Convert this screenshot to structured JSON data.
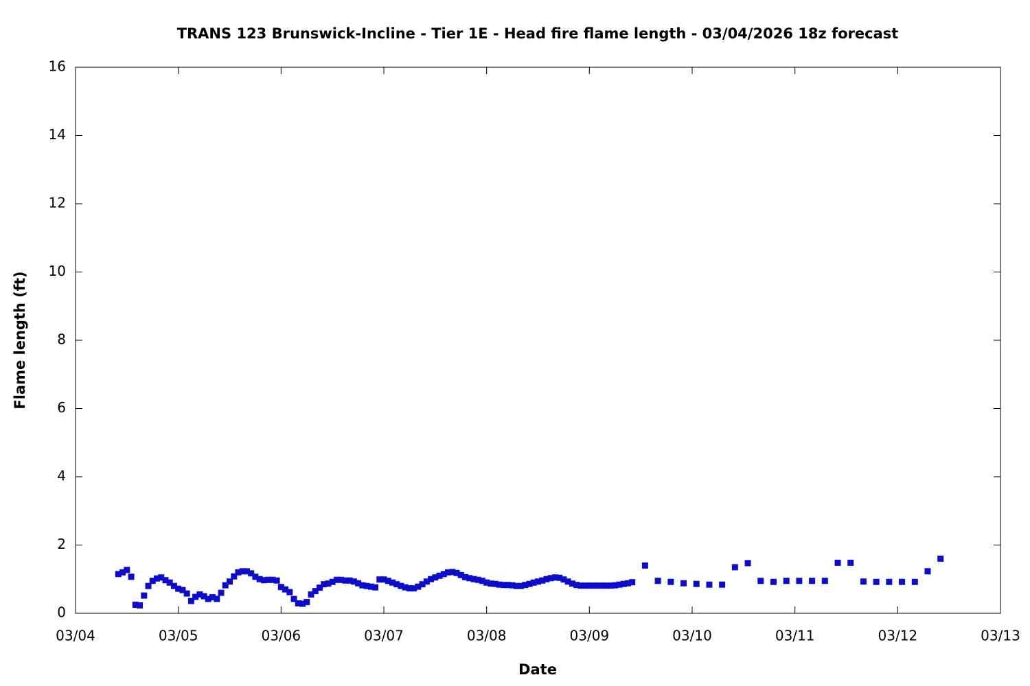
{
  "chart_data": {
    "type": "scatter",
    "title": "TRANS 123 Brunswick-Incline - Tier 1E - Head fire flame length - 03/04/2026 18z forecast",
    "x_label": "Date",
    "y_label": "Flame length (ft)",
    "x": [
      10,
      11,
      12,
      13,
      14,
      15,
      16,
      17,
      18,
      19,
      20,
      21,
      22,
      23,
      24,
      25,
      26,
      27,
      28,
      29,
      30,
      31,
      32,
      33,
      34,
      35,
      36,
      37,
      38,
      39,
      40,
      41,
      42,
      43,
      44,
      45,
      46,
      47,
      48,
      49,
      50,
      51,
      52,
      53,
      54,
      55,
      56,
      57,
      58,
      59,
      60,
      61,
      62,
      63,
      64,
      65,
      66,
      67,
      68,
      69,
      70,
      71,
      72,
      73,
      74,
      75,
      76,
      77,
      78,
      79,
      80,
      81,
      82,
      83,
      84,
      85,
      86,
      87,
      88,
      89,
      90,
      91,
      92,
      93,
      94,
      95,
      96,
      97,
      98,
      99,
      100,
      101,
      102,
      103,
      104,
      105,
      106,
      107,
      108,
      109,
      110,
      111,
      112,
      113,
      114,
      115,
      116,
      117,
      118,
      119,
      120,
      121,
      122,
      123,
      124,
      125,
      126,
      127,
      128,
      129,
      130,
      133,
      136,
      139,
      142,
      145,
      148,
      151,
      154,
      157,
      160,
      163,
      166,
      169,
      172,
      175,
      178,
      181,
      184,
      187,
      190,
      193,
      196,
      199,
      202
    ],
    "values": [
      1.15,
      1.2,
      1.27,
      1.07,
      0.25,
      0.23,
      0.52,
      0.8,
      0.95,
      1.02,
      1.05,
      0.97,
      0.9,
      0.8,
      0.72,
      0.68,
      0.58,
      0.36,
      0.48,
      0.55,
      0.5,
      0.42,
      0.47,
      0.42,
      0.6,
      0.82,
      0.93,
      1.08,
      1.2,
      1.23,
      1.23,
      1.17,
      1.07,
      1.0,
      0.97,
      0.98,
      0.98,
      0.96,
      0.77,
      0.7,
      0.62,
      0.42,
      0.29,
      0.28,
      0.33,
      0.55,
      0.65,
      0.75,
      0.85,
      0.87,
      0.92,
      0.98,
      0.98,
      0.96,
      0.96,
      0.93,
      0.88,
      0.82,
      0.8,
      0.78,
      0.76,
      0.99,
      0.99,
      0.95,
      0.9,
      0.85,
      0.8,
      0.76,
      0.73,
      0.73,
      0.78,
      0.85,
      0.93,
      1.0,
      1.05,
      1.1,
      1.15,
      1.2,
      1.21,
      1.18,
      1.12,
      1.06,
      1.03,
      1.0,
      0.98,
      0.95,
      0.9,
      0.87,
      0.86,
      0.84,
      0.83,
      0.83,
      0.82,
      0.8,
      0.8,
      0.83,
      0.86,
      0.9,
      0.93,
      0.96,
      1.0,
      1.03,
      1.05,
      1.04,
      0.99,
      0.93,
      0.87,
      0.83,
      0.81,
      0.81,
      0.81,
      0.81,
      0.81,
      0.81,
      0.81,
      0.81,
      0.82,
      0.84,
      0.86,
      0.88,
      0.91,
      1.4,
      0.95,
      0.92,
      0.88,
      0.86,
      0.84,
      0.84,
      1.35,
      1.47,
      0.95,
      0.92,
      0.95,
      0.95,
      0.95,
      0.95,
      1.48,
      1.48,
      0.93,
      0.92,
      0.92,
      0.92,
      0.92,
      1.23,
      1.6
    ],
    "color": "#0c0ccc",
    "xlim": [
      0,
      216
    ],
    "xticks": [
      {
        "value": 0,
        "label": "03/04"
      },
      {
        "value": 24,
        "label": "03/05"
      },
      {
        "value": 48,
        "label": "03/06"
      },
      {
        "value": 72,
        "label": "03/07"
      },
      {
        "value": 96,
        "label": "03/08"
      },
      {
        "value": 120,
        "label": "03/09"
      },
      {
        "value": 144,
        "label": "03/10"
      },
      {
        "value": 168,
        "label": "03/11"
      },
      {
        "value": 192,
        "label": "03/12"
      },
      {
        "value": 216,
        "label": "03/13"
      }
    ],
    "ylim": [
      0,
      16
    ],
    "yticks": [
      0,
      2,
      4,
      6,
      8,
      10,
      12,
      14,
      16
    ]
  }
}
